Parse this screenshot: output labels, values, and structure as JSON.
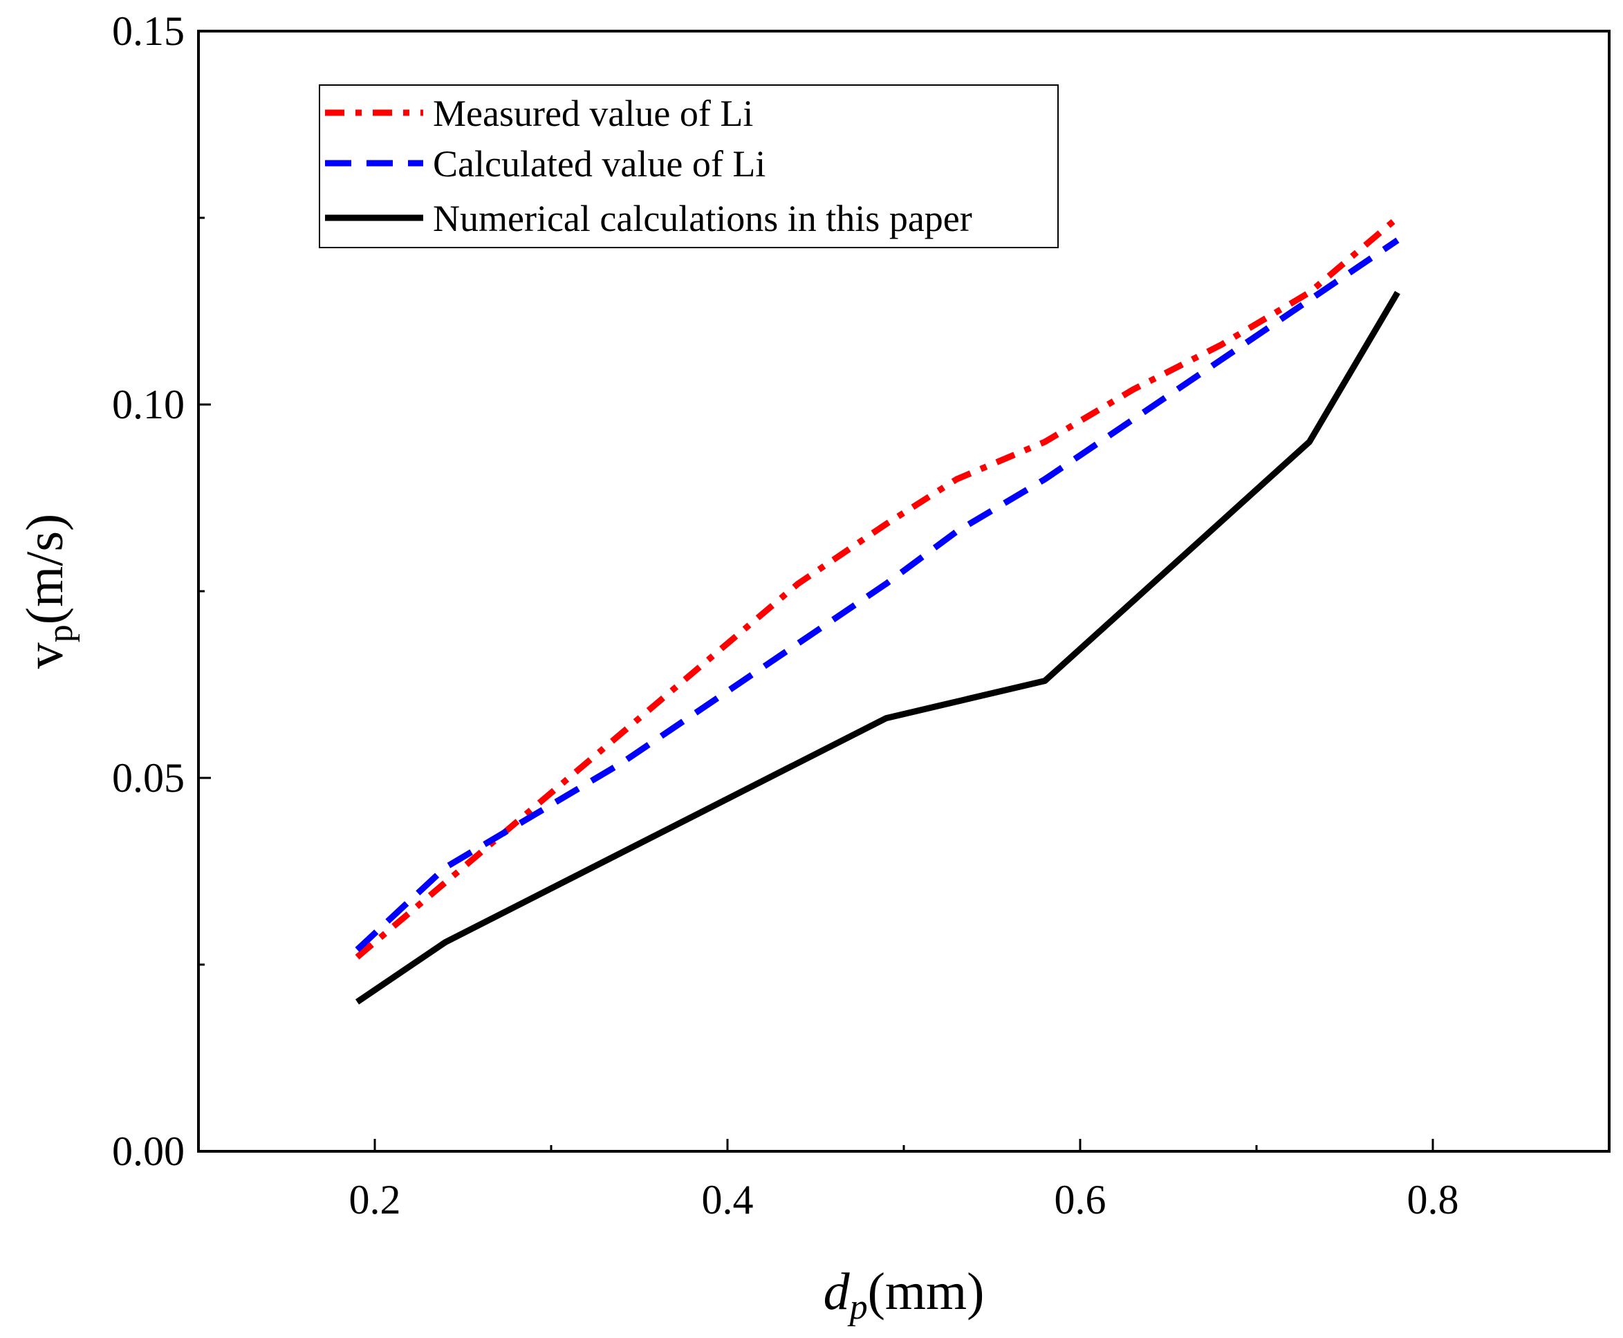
{
  "chart_data": {
    "type": "line",
    "title": "",
    "xlabel": {
      "main": "d",
      "sub": "p",
      "unit": "(mm)"
    },
    "ylabel": {
      "main": "v",
      "sub": "p",
      "unit": "(m/s)"
    },
    "xlim": [
      0.1,
      0.9
    ],
    "ylim": [
      0.0,
      0.15
    ],
    "x_ticks": [
      0.2,
      0.4,
      0.6,
      0.8
    ],
    "x_tick_labels": [
      "0.2",
      "0.4",
      "0.6",
      "0.8"
    ],
    "x_minor_ticks": [
      0.3,
      0.5,
      0.7
    ],
    "y_ticks": [
      0.0,
      0.05,
      0.1,
      0.15
    ],
    "y_tick_labels": [
      "0.00",
      "0.05",
      "0.10",
      "0.15"
    ],
    "y_minor_ticks": [
      0.025,
      0.075,
      0.125
    ],
    "grid": false,
    "legend_position": "top-left",
    "series": [
      {
        "name": "Measured value of Li",
        "color": "#ff0000",
        "style": "dash-dot",
        "x": [
          0.19,
          0.24,
          0.29,
          0.34,
          0.39,
          0.44,
          0.49,
          0.53,
          0.58,
          0.63,
          0.68,
          0.73,
          0.78
        ],
        "y": [
          0.026,
          0.036,
          0.046,
          0.056,
          0.066,
          0.076,
          0.084,
          0.09,
          0.095,
          0.102,
          0.108,
          0.115,
          0.125
        ]
      },
      {
        "name": "Calculated value of Li",
        "color": "#0000ff",
        "style": "dash",
        "x": [
          0.19,
          0.24,
          0.29,
          0.34,
          0.39,
          0.44,
          0.49,
          0.53,
          0.58,
          0.63,
          0.68,
          0.73,
          0.78
        ],
        "y": [
          0.027,
          0.038,
          0.045,
          0.052,
          0.06,
          0.068,
          0.076,
          0.083,
          0.09,
          0.098,
          0.106,
          0.114,
          0.122
        ]
      },
      {
        "name": "Numerical calculations in this paper",
        "color": "#000000",
        "style": "solid",
        "x": [
          0.19,
          0.24,
          0.49,
          0.58,
          0.73,
          0.78
        ],
        "y": [
          0.02,
          0.028,
          0.058,
          0.063,
          0.095,
          0.115
        ]
      }
    ]
  }
}
